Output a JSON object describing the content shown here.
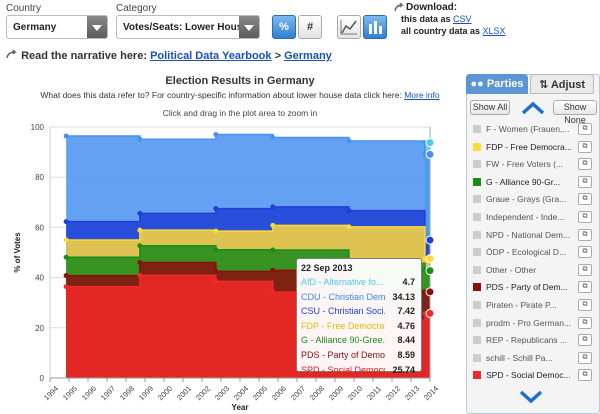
{
  "controls": {
    "country_label": "Country",
    "country_value": "Germany",
    "category_label": "Category",
    "category_value": "Votes/Seats: Lower House",
    "percent_label": "%",
    "absolute_label": "#",
    "download_label": "Download:",
    "download_this_prefix": "this data as",
    "download_this_link": "CSV",
    "download_all_prefix": "all country data as",
    "download_all_link": "XLSX"
  },
  "narrative": {
    "prefix": "Read the narrative here:",
    "link1": "Political Data Yearbook",
    "sep": ">",
    "link2": "Germany"
  },
  "chart": {
    "title": "Election Results in Germany",
    "subtitle_text": "What does this data refer to? For country-specific information about lower house data click here:",
    "subtitle_link": "More info",
    "zoom_hint": "Click and drag in the plot area to zoom in",
    "ylabel": "% of Votes",
    "xlabel": "Year"
  },
  "chart_data": {
    "type": "area",
    "title": "Election Results in Germany",
    "xlabel": "Year",
    "ylabel": "% of Votes",
    "xlim": [
      1994,
      2014
    ],
    "ylim": [
      0,
      100
    ],
    "x_ticks": [
      "1994",
      "1995",
      "1996",
      "1997",
      "1998",
      "1999",
      "2000",
      "2001",
      "2002",
      "2003",
      "2004",
      "2005",
      "2006",
      "2007",
      "2008",
      "2009",
      "2010",
      "2011",
      "2012",
      "2013",
      "2014"
    ],
    "y_ticks": [
      0,
      20,
      40,
      60,
      80,
      100
    ],
    "elections": [
      1994,
      1998,
      2002,
      2005,
      2009,
      2013
    ],
    "stacked_series_cumulative": [
      {
        "name": "SPD - Social Democra...",
        "color": "#f42828",
        "values": [
          36.4,
          40.9,
          38.5,
          34.2,
          23.0,
          25.74
        ]
      },
      {
        "name": "PDS - Party of Democ...",
        "color": "#8b0f0f",
        "values": [
          40.8,
          46.0,
          42.5,
          42.9,
          34.9,
          34.33
        ]
      },
      {
        "name": "G - Alliance 90-Gree...",
        "color": "#1a8c1a",
        "values": [
          48.1,
          52.7,
          51.1,
          51.0,
          45.6,
          42.77
        ]
      },
      {
        "name": "FDP - Free Democrats...",
        "color": "#ffd83a",
        "values": [
          55.0,
          58.9,
          58.5,
          60.8,
          60.2,
          47.53
        ]
      },
      {
        "name": "CSU - Christian Soci...",
        "color": "#1f3fd6",
        "values": [
          62.3,
          65.6,
          67.5,
          68.2,
          66.7,
          54.95
        ]
      },
      {
        "name": "CDU - Christian Demo...",
        "color": "#4a90f0",
        "values": [
          96.4,
          95.1,
          97.0,
          95.8,
          94.4,
          89.08
        ]
      },
      {
        "name": "AfD - Alternative fo...",
        "color": "#4fc8f0",
        "values": [
          null,
          null,
          null,
          null,
          null,
          93.78
        ]
      }
    ],
    "tooltip": {
      "date": "22 Sep 2013",
      "rows": [
        {
          "name": "AfD - Alternative fo...",
          "value": "4.7",
          "color": "#4fc8f0"
        },
        {
          "name": "CDU - Christian Demo...",
          "value": "34.13",
          "color": "#3d85e8"
        },
        {
          "name": "CSU - Christian Soci...",
          "value": "7.42",
          "color": "#1f3fd6"
        },
        {
          "name": "FDP - Free Democrats...",
          "value": "4.76",
          "color": "#e8b800"
        },
        {
          "name": "G - Alliance 90-Gree...",
          "value": "8.44",
          "color": "#1a8c1a"
        },
        {
          "name": "PDS - Party of Democ...",
          "value": "8.59",
          "color": "#8b0f0f"
        },
        {
          "name": "SPD - Social Democra...",
          "value": "25.74",
          "color": "#e01818"
        }
      ]
    }
  },
  "sidebar": {
    "tab_parties": "Parties",
    "tab_adjust": "Adjust",
    "show_all": "Show All",
    "show_none": "Show None",
    "parties": [
      {
        "name": "F - Women (Frauen,...",
        "color": "#cccccc",
        "active": false
      },
      {
        "name": "FDP - Free Democra...",
        "color": "#ffd83a",
        "active": true
      },
      {
        "name": "FW - Free Voters (...",
        "color": "#cccccc",
        "active": false
      },
      {
        "name": "G - Alliance 90-Gr...",
        "color": "#1a8c1a",
        "active": true
      },
      {
        "name": "Graue - Grays (Gra...",
        "color": "#cccccc",
        "active": false
      },
      {
        "name": "Independent - Inde...",
        "color": "#cccccc",
        "active": false
      },
      {
        "name": "NPD - National Dem...",
        "color": "#cccccc",
        "active": false
      },
      {
        "name": "ÖDP - Ecological D...",
        "color": "#cccccc",
        "active": false
      },
      {
        "name": "Other - Other",
        "color": "#cccccc",
        "active": false
      },
      {
        "name": "PDS - Party of Dem...",
        "color": "#8b0f0f",
        "active": true
      },
      {
        "name": "Piraten - Pirate P...",
        "color": "#cccccc",
        "active": false
      },
      {
        "name": "prodm - Pro German...",
        "color": "#cccccc",
        "active": false
      },
      {
        "name": "REP - Republicans ...",
        "color": "#cccccc",
        "active": false
      },
      {
        "name": "schill - Schill Pa...",
        "color": "#cccccc",
        "active": false
      },
      {
        "name": "SPD - Social Democ...",
        "color": "#f42828",
        "active": true
      }
    ]
  }
}
